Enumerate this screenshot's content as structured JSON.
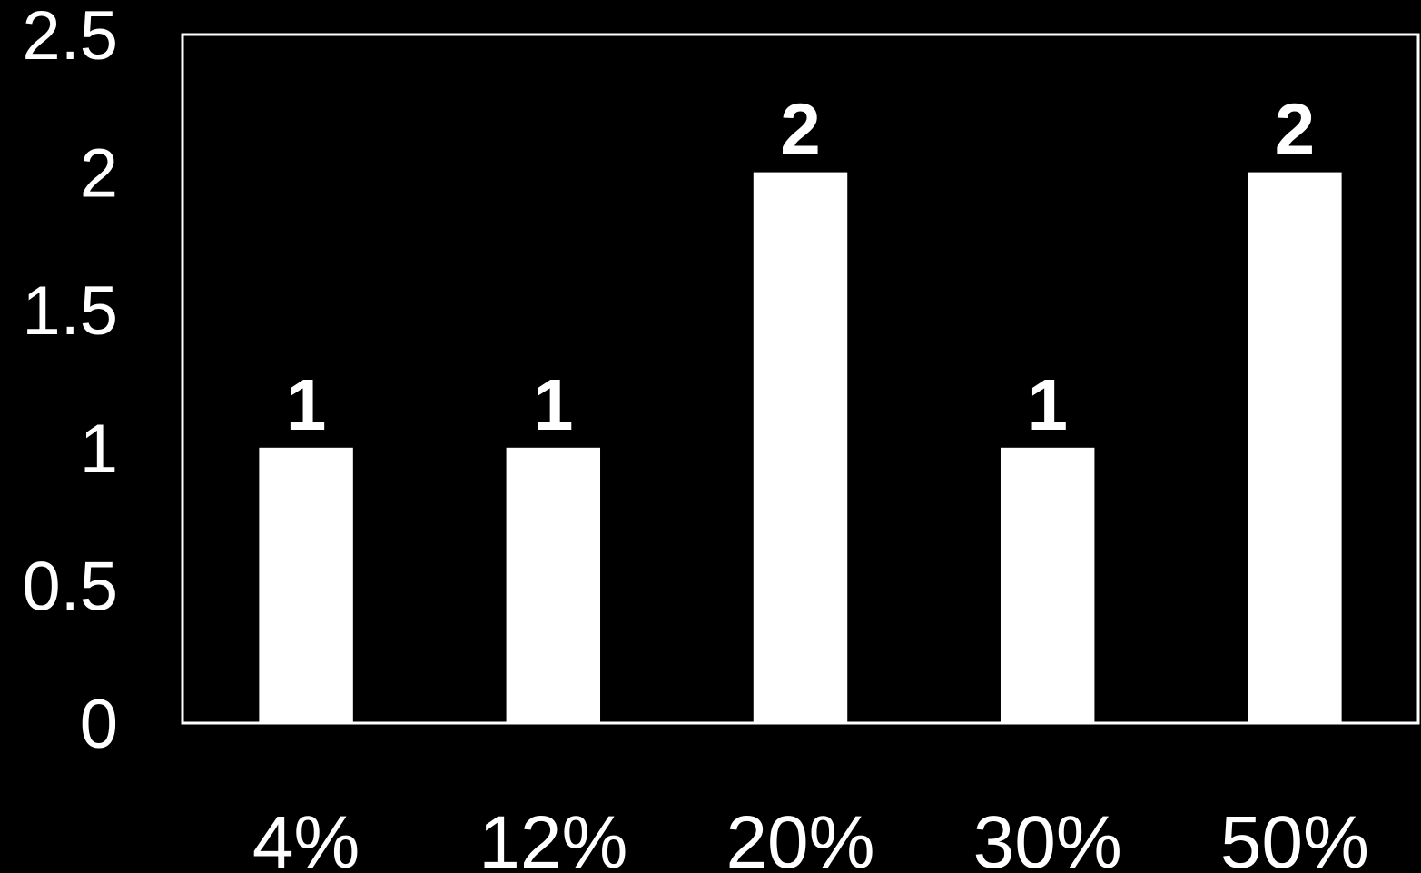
{
  "chart_data": {
    "type": "bar",
    "title": "",
    "xlabel": "",
    "ylabel": "",
    "categories": [
      "4%",
      "12%",
      "20%",
      "30%",
      "50%"
    ],
    "values": [
      1,
      1,
      2,
      1,
      2
    ],
    "data_labels": [
      "1",
      "1",
      "2",
      "1",
      "2"
    ],
    "ylim": [
      0,
      2.5
    ],
    "yticks": [
      0,
      0.5,
      1,
      1.5,
      2,
      2.5
    ],
    "ytick_labels": [
      "0",
      "0.5",
      "1",
      "1.5",
      "2",
      "2.5"
    ],
    "grid": false,
    "legend": "none",
    "colors": {
      "background": "#000000",
      "bar": "#ffffff",
      "frame": "#ffffff",
      "text": "#ffffff"
    }
  }
}
